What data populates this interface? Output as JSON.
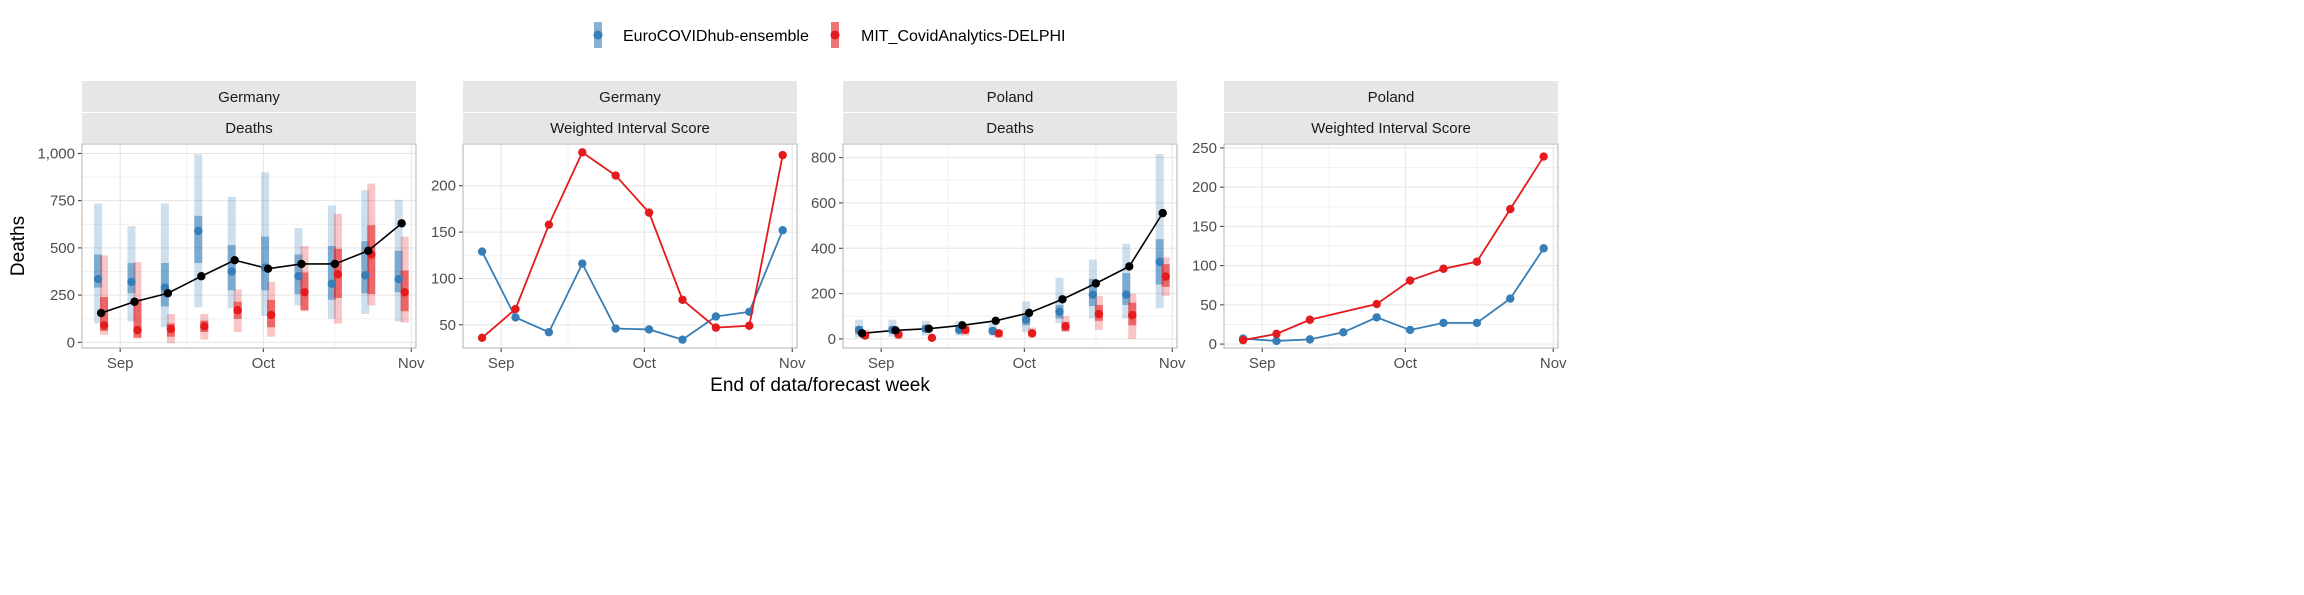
{
  "colors": {
    "ensemble": "#377eb8",
    "delphi": "#e41a1c",
    "observed": "#000000",
    "strip_bg": "#e6e6e6",
    "grid": "#e5e5e5",
    "axis_text": "#4d4d4d"
  },
  "legend": {
    "items": [
      {
        "label": "EuroCOVIDhub-ensemble",
        "color": "#377eb8"
      },
      {
        "label": "MIT_CovidAnalytics-DELPHI",
        "color": "#e41a1c"
      }
    ]
  },
  "axes": {
    "xlabel": "End of data/forecast week",
    "ylabel": "Deaths"
  },
  "chart_data": [
    {
      "type": "scatter",
      "location": "Germany",
      "metric": "Deaths",
      "x_ticks": [
        "Sep",
        "Oct",
        "Nov"
      ],
      "y_ticks": [
        "0",
        "250",
        "500",
        "750",
        "1,000"
      ],
      "ylim": [
        -30,
        1050
      ],
      "weeks": [
        "2021-08-28",
        "2021-09-04",
        "2021-09-11",
        "2021-09-18",
        "2021-09-25",
        "2021-10-02",
        "2021-10-09",
        "2021-10-16",
        "2021-10-23",
        "2021-10-30"
      ],
      "observed": [
        155,
        215,
        260,
        350,
        435,
        390,
        415,
        415,
        485,
        630
      ],
      "series": [
        {
          "name": "EuroCOVIDhub-ensemble",
          "median": [
            335,
            320,
            290,
            590,
            375,
            395,
            350,
            310,
            355,
            335
          ],
          "inner": [
            [
              290,
              465
            ],
            [
              260,
              420
            ],
            [
              190,
              420
            ],
            [
              420,
              670
            ],
            [
              275,
              515
            ],
            [
              275,
              560
            ],
            [
              255,
              465
            ],
            [
              225,
              510
            ],
            [
              260,
              535
            ],
            [
              265,
              485
            ]
          ],
          "outer": [
            [
              100,
              735
            ],
            [
              110,
              615
            ],
            [
              80,
              735
            ],
            [
              185,
              995
            ],
            [
              180,
              770
            ],
            [
              140,
              900
            ],
            [
              195,
              605
            ],
            [
              125,
              725
            ],
            [
              150,
              805
            ],
            [
              110,
              755
            ]
          ]
        },
        {
          "name": "MIT_CovidAnalytics-DELPHI",
          "median": [
            90,
            65,
            70,
            85,
            170,
            145,
            265,
            360,
            465,
            265
          ],
          "inner": [
            [
              60,
              240
            ],
            [
              25,
              230
            ],
            [
              30,
              100
            ],
            [
              55,
              115
            ],
            [
              125,
              215
            ],
            [
              80,
              225
            ],
            [
              170,
              370
            ],
            [
              235,
              495
            ],
            [
              255,
              620
            ],
            [
              165,
              380
            ]
          ],
          "outer": [
            [
              40,
              460
            ],
            [
              20,
              425
            ],
            [
              -5,
              150
            ],
            [
              15,
              150
            ],
            [
              55,
              280
            ],
            [
              30,
              320
            ],
            [
              165,
              510
            ],
            [
              100,
              680
            ],
            [
              195,
              840
            ],
            [
              105,
              560
            ]
          ]
        }
      ]
    },
    {
      "type": "line",
      "location": "Germany",
      "metric": "Weighted Interval Score",
      "x_ticks": [
        "Sep",
        "Oct",
        "Nov"
      ],
      "y_ticks": [
        "50",
        "100",
        "150",
        "200"
      ],
      "ylim": [
        25,
        245
      ],
      "weeks": [
        "2021-08-28",
        "2021-09-04",
        "2021-09-11",
        "2021-09-18",
        "2021-09-25",
        "2021-10-02",
        "2021-10-09",
        "2021-10-16",
        "2021-10-23",
        "2021-10-30"
      ],
      "series": [
        {
          "name": "EuroCOVIDhub-ensemble",
          "values": [
            129,
            58,
            42,
            116,
            46,
            45,
            34,
            59,
            64,
            152
          ]
        },
        {
          "name": "MIT_CovidAnalytics-DELPHI",
          "values": [
            36,
            67,
            158,
            236,
            211,
            171,
            77,
            47,
            49,
            233
          ]
        }
      ]
    },
    {
      "type": "scatter",
      "location": "Poland",
      "metric": "Deaths",
      "x_ticks": [
        "Sep",
        "Oct",
        "Nov"
      ],
      "y_ticks": [
        "0",
        "200",
        "400",
        "600",
        "800"
      ],
      "ylim": [
        -40,
        860
      ],
      "weeks": [
        "2021-08-28",
        "2021-09-04",
        "2021-09-11",
        "2021-09-18",
        "2021-09-25",
        "2021-10-02",
        "2021-10-09",
        "2021-10-16",
        "2021-10-23",
        "2021-10-30"
      ],
      "observed": [
        25,
        38,
        45,
        60,
        80,
        115,
        175,
        245,
        320,
        555
      ],
      "series": [
        {
          "name": "EuroCOVIDhub-ensemble",
          "median": [
            40,
            40,
            45,
            40,
            35,
            85,
            120,
            195,
            195,
            340
          ],
          "inner": [
            [
              20,
              55
            ],
            [
              25,
              55
            ],
            [
              30,
              60
            ],
            [
              30,
              55
            ],
            [
              25,
              50
            ],
            [
              60,
              110
            ],
            [
              90,
              150
            ],
            [
              145,
              265
            ],
            [
              150,
              290
            ],
            [
              240,
              440
            ]
          ],
          "outer": [
            [
              5,
              85
            ],
            [
              10,
              85
            ],
            [
              15,
              80
            ],
            [
              15,
              80
            ],
            [
              15,
              70
            ],
            [
              30,
              165
            ],
            [
              70,
              270
            ],
            [
              90,
              350
            ],
            [
              90,
              420
            ],
            [
              135,
              815
            ]
          ]
        },
        {
          "name": "MIT_CovidAnalytics-DELPHI",
          "median": [
            15,
            20,
            5,
            40,
            25,
            25,
            55,
            110,
            105,
            275
          ],
          "inner": [
            [
              5,
              25
            ],
            [
              10,
              30
            ],
            [
              0,
              10
            ],
            [
              25,
              55
            ],
            [
              10,
              35
            ],
            [
              15,
              35
            ],
            [
              35,
              75
            ],
            [
              80,
              150
            ],
            [
              60,
              160
            ],
            [
              230,
              330
            ]
          ],
          "outer": [
            [
              0,
              40
            ],
            [
              0,
              40
            ],
            [
              -5,
              15
            ],
            [
              15,
              65
            ],
            [
              5,
              40
            ],
            [
              5,
              50
            ],
            [
              30,
              100
            ],
            [
              40,
              190
            ],
            [
              0,
              200
            ],
            [
              190,
              360
            ]
          ]
        }
      ]
    },
    {
      "type": "line",
      "location": "Poland",
      "metric": "Weighted Interval Score",
      "x_ticks": [
        "Sep",
        "Oct",
        "Nov"
      ],
      "y_ticks": [
        "0",
        "50",
        "100",
        "150",
        "200",
        "250"
      ],
      "ylim": [
        -5,
        255
      ],
      "weeks": [
        "2021-08-28",
        "2021-09-04",
        "2021-09-11",
        "2021-09-18",
        "2021-09-25",
        "2021-10-02",
        "2021-10-09",
        "2021-10-16",
        "2021-10-23",
        "2021-10-30"
      ],
      "series": [
        {
          "name": "EuroCOVIDhub-ensemble",
          "values": [
            7,
            4,
            6,
            15,
            34,
            18,
            27,
            27,
            58,
            122
          ]
        },
        {
          "name": "MIT_CovidAnalytics-DELPHI",
          "values": [
            5,
            13,
            31,
            null,
            51,
            81,
            96,
            105,
            172,
            239
          ]
        }
      ]
    }
  ]
}
